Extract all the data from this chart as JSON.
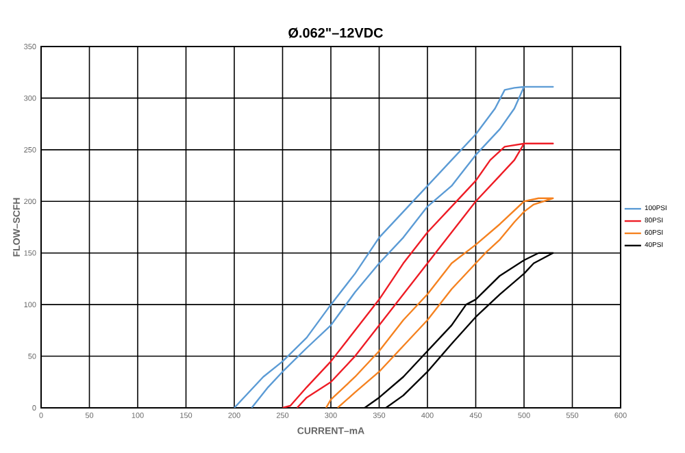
{
  "chart_data": {
    "type": "line",
    "subtitle": "Ø.062\"–12VDC",
    "xlabel": "CURRENT–mA",
    "ylabel": "FLOW–SCFH",
    "xlim": [
      0,
      600
    ],
    "ylim": [
      0,
      350
    ],
    "xticks": [
      0,
      50,
      100,
      150,
      200,
      250,
      300,
      350,
      400,
      450,
      500,
      550,
      600
    ],
    "yticks": [
      0,
      50,
      100,
      150,
      200,
      250,
      300,
      350
    ],
    "grid": true,
    "legend": "right",
    "marker": "none",
    "line_style": "solid",
    "series": [
      {
        "name": "100PSI",
        "color": "#5b9bd5",
        "x": [
          200,
          210,
          230,
          250,
          275,
          300,
          325,
          350,
          375,
          400,
          425,
          450,
          470,
          480,
          490,
          500,
          530,
          500,
          490,
          475,
          450,
          425,
          400,
          375,
          350,
          325,
          300,
          275,
          250,
          235,
          218
        ],
        "values": [
          0,
          10,
          30,
          45,
          68,
          100,
          130,
          165,
          190,
          215,
          240,
          265,
          290,
          308,
          310,
          311,
          311,
          311,
          290,
          270,
          245,
          215,
          195,
          165,
          140,
          112,
          80,
          58,
          35,
          20,
          0
        ]
      },
      {
        "name": "80PSI",
        "color": "#ee1c25",
        "x": [
          250,
          258,
          275,
          300,
          325,
          350,
          375,
          400,
          425,
          450,
          465,
          480,
          500,
          530,
          500,
          490,
          475,
          450,
          425,
          400,
          375,
          350,
          325,
          300,
          275,
          265
        ],
        "values": [
          0,
          2,
          20,
          45,
          75,
          105,
          140,
          170,
          195,
          220,
          240,
          253,
          256,
          256,
          256,
          240,
          225,
          200,
          170,
          140,
          110,
          80,
          50,
          25,
          10,
          0
        ]
      },
      {
        "name": "60PSI",
        "color": "#f58220",
        "x": [
          295,
          300,
          325,
          350,
          375,
          400,
          425,
          450,
          475,
          500,
          515,
          530,
          510,
          500,
          490,
          475,
          460,
          450,
          425,
          400,
          375,
          350,
          325,
          307
        ],
        "values": [
          0,
          8,
          30,
          55,
          85,
          110,
          140,
          158,
          178,
          200,
          203,
          203,
          197,
          190,
          180,
          163,
          150,
          140,
          115,
          85,
          60,
          35,
          15,
          0
        ]
      },
      {
        "name": "40PSI",
        "color": "#000000",
        "x": [
          335,
          350,
          375,
          400,
          425,
          440,
          450,
          475,
          500,
          515,
          530,
          510,
          500,
          475,
          450,
          425,
          400,
          375,
          357
        ],
        "values": [
          0,
          10,
          30,
          55,
          80,
          100,
          105,
          128,
          143,
          150,
          150,
          140,
          130,
          110,
          88,
          62,
          35,
          12,
          0
        ]
      }
    ]
  }
}
